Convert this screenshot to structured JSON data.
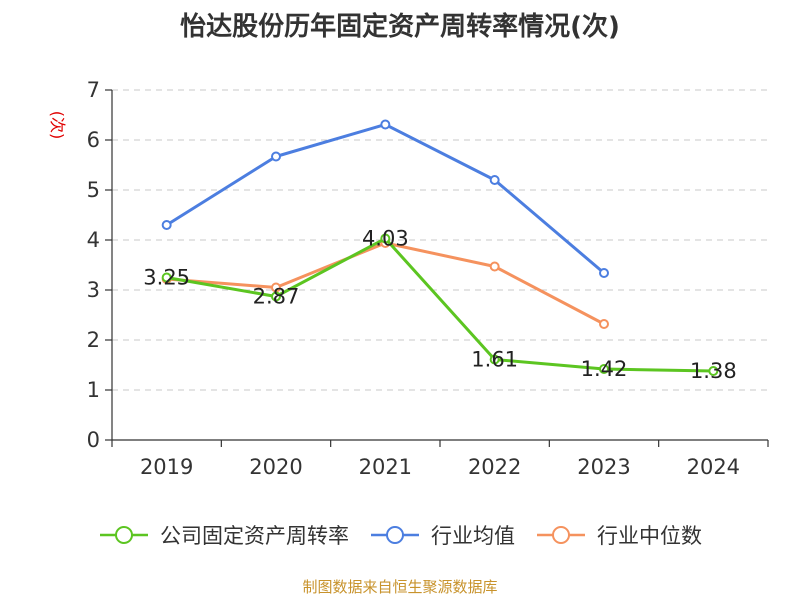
{
  "title": "怡达股份历年固定资产周转率情况(次)",
  "source": "制图数据来自恒生聚源数据库",
  "colors": {
    "company": "#5cc521",
    "industry_avg": "#4c7ee0",
    "industry_median": "#f5925e",
    "axis": "#333333",
    "grid": "#c8c8c8",
    "unit_label": "#e00000"
  },
  "chart_data": {
    "type": "line",
    "title": "怡达股份历年固定资产周转率情况(次)",
    "ylabel": "(次)",
    "xlabel": "",
    "categories": [
      "2019",
      "2020",
      "2021",
      "2022",
      "2023",
      "2024"
    ],
    "ylim": [
      0,
      7
    ],
    "yticks": [
      "0",
      "1",
      "2",
      "3",
      "4",
      "5",
      "6",
      "7"
    ],
    "grid": true,
    "legend_position": "bottom",
    "series": [
      {
        "name": "公司固定资产周转率",
        "color": "#5cc521",
        "values": [
          3.25,
          2.87,
          4.03,
          1.61,
          1.42,
          1.38
        ],
        "labels": [
          "3.25",
          "2.87",
          "4.03",
          "1.61",
          "1.42",
          "1.38"
        ]
      },
      {
        "name": "行业均值",
        "color": "#4c7ee0",
        "values": [
          4.3,
          5.67,
          6.31,
          5.2,
          3.34,
          null
        ],
        "labels": []
      },
      {
        "name": "行业中位数",
        "color": "#f5925e",
        "values": [
          3.22,
          3.05,
          3.94,
          3.47,
          2.32,
          null
        ],
        "labels": []
      }
    ]
  }
}
